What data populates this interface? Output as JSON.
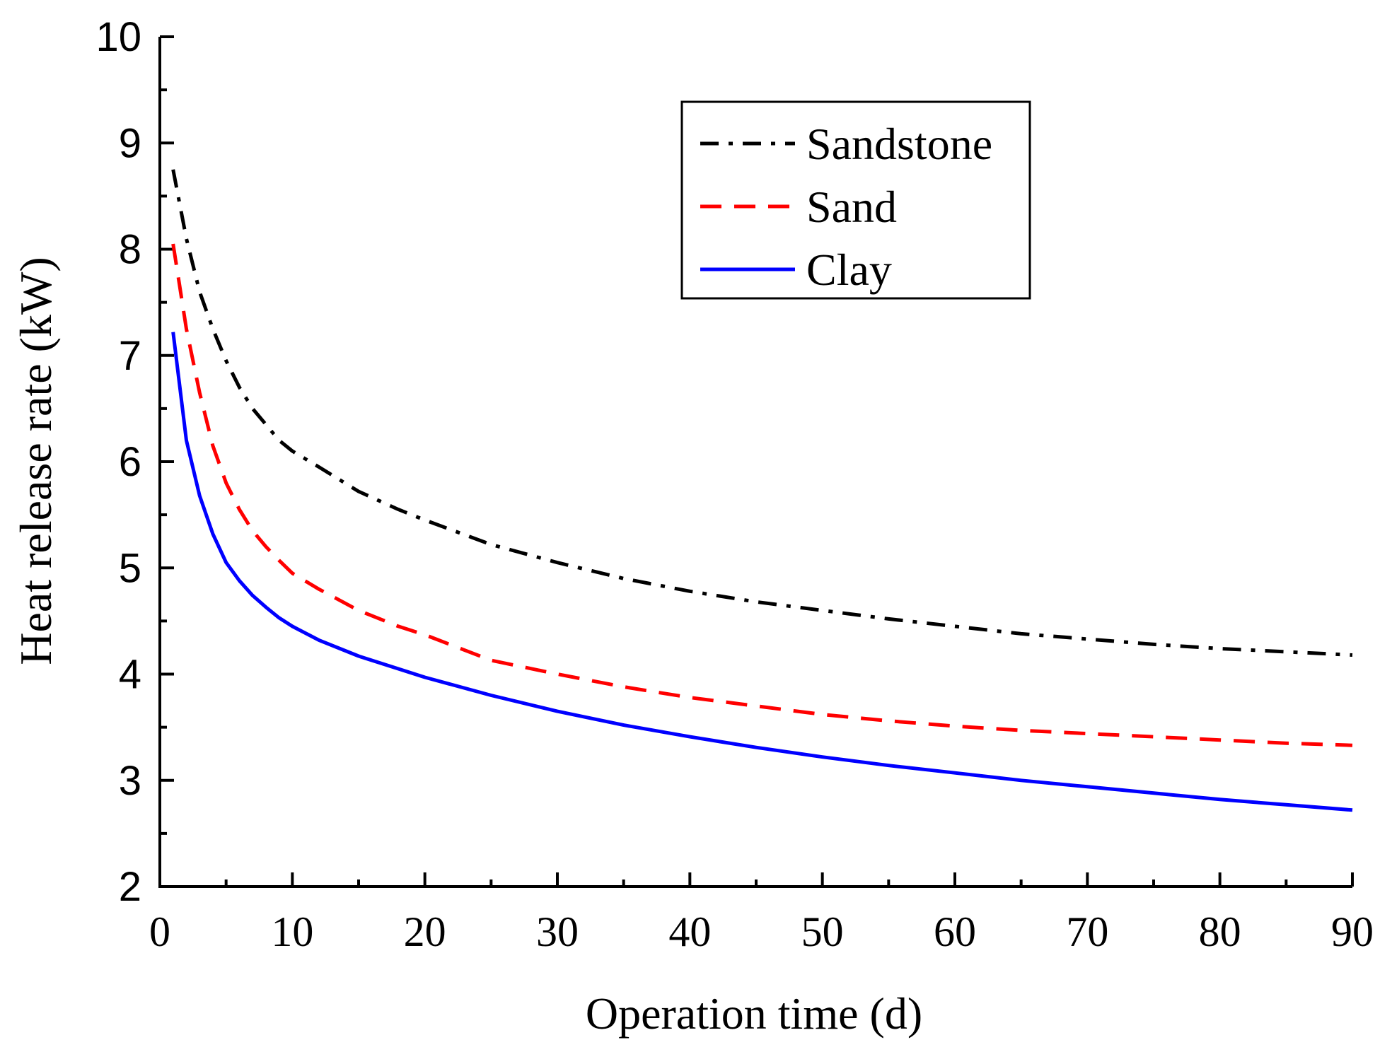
{
  "chart_data": {
    "type": "line",
    "title": "",
    "xlabel": "Operation time (d)",
    "ylabel": "Heat release rate (kW)",
    "xlim": [
      0,
      90
    ],
    "ylim": [
      2,
      10
    ],
    "xticks": [
      "0",
      "10",
      "20",
      "30",
      "40",
      "50",
      "60",
      "70",
      "80",
      "90"
    ],
    "yticks": [
      "2",
      "3",
      "4",
      "5",
      "6",
      "7",
      "8",
      "9",
      "10"
    ],
    "grid": false,
    "legend_position": "top-right",
    "series": [
      {
        "name": "Sandstone",
        "color": "#000000",
        "style": "dash-dot",
        "x": [
          1,
          2,
          3,
          4,
          5,
          6,
          7,
          8,
          9,
          10,
          12,
          15,
          18,
          20,
          25,
          30,
          35,
          40,
          45,
          50,
          55,
          60,
          65,
          70,
          75,
          80,
          85,
          90
        ],
        "y": [
          8.75,
          8.1,
          7.6,
          7.25,
          6.95,
          6.7,
          6.5,
          6.35,
          6.2,
          6.1,
          5.95,
          5.72,
          5.55,
          5.45,
          5.22,
          5.05,
          4.9,
          4.78,
          4.68,
          4.6,
          4.52,
          4.45,
          4.38,
          4.33,
          4.28,
          4.24,
          4.21,
          4.18
        ]
      },
      {
        "name": "Sand",
        "color": "#ff0000",
        "style": "dashed",
        "x": [
          1,
          2,
          3,
          4,
          5,
          6,
          7,
          8,
          9,
          10,
          12,
          15,
          18,
          20,
          25,
          30,
          35,
          40,
          45,
          50,
          55,
          60,
          65,
          70,
          75,
          80,
          85,
          90
        ],
        "y": [
          8.05,
          7.25,
          6.65,
          6.15,
          5.8,
          5.55,
          5.35,
          5.2,
          5.07,
          4.95,
          4.8,
          4.6,
          4.45,
          4.37,
          4.13,
          4.0,
          3.88,
          3.78,
          3.7,
          3.62,
          3.56,
          3.51,
          3.47,
          3.44,
          3.41,
          3.38,
          3.35,
          3.33
        ]
      },
      {
        "name": "Clay",
        "color": "#0000ff",
        "style": "solid",
        "x": [
          1,
          2,
          3,
          4,
          5,
          6,
          7,
          8,
          9,
          10,
          12,
          15,
          18,
          20,
          25,
          30,
          35,
          40,
          45,
          50,
          55,
          60,
          65,
          70,
          75,
          80,
          85,
          90
        ],
        "y": [
          7.22,
          6.2,
          5.68,
          5.32,
          5.05,
          4.88,
          4.74,
          4.63,
          4.53,
          4.45,
          4.32,
          4.17,
          4.05,
          3.97,
          3.8,
          3.65,
          3.52,
          3.41,
          3.31,
          3.22,
          3.14,
          3.07,
          3.0,
          2.94,
          2.88,
          2.82,
          2.77,
          2.72
        ]
      }
    ]
  }
}
